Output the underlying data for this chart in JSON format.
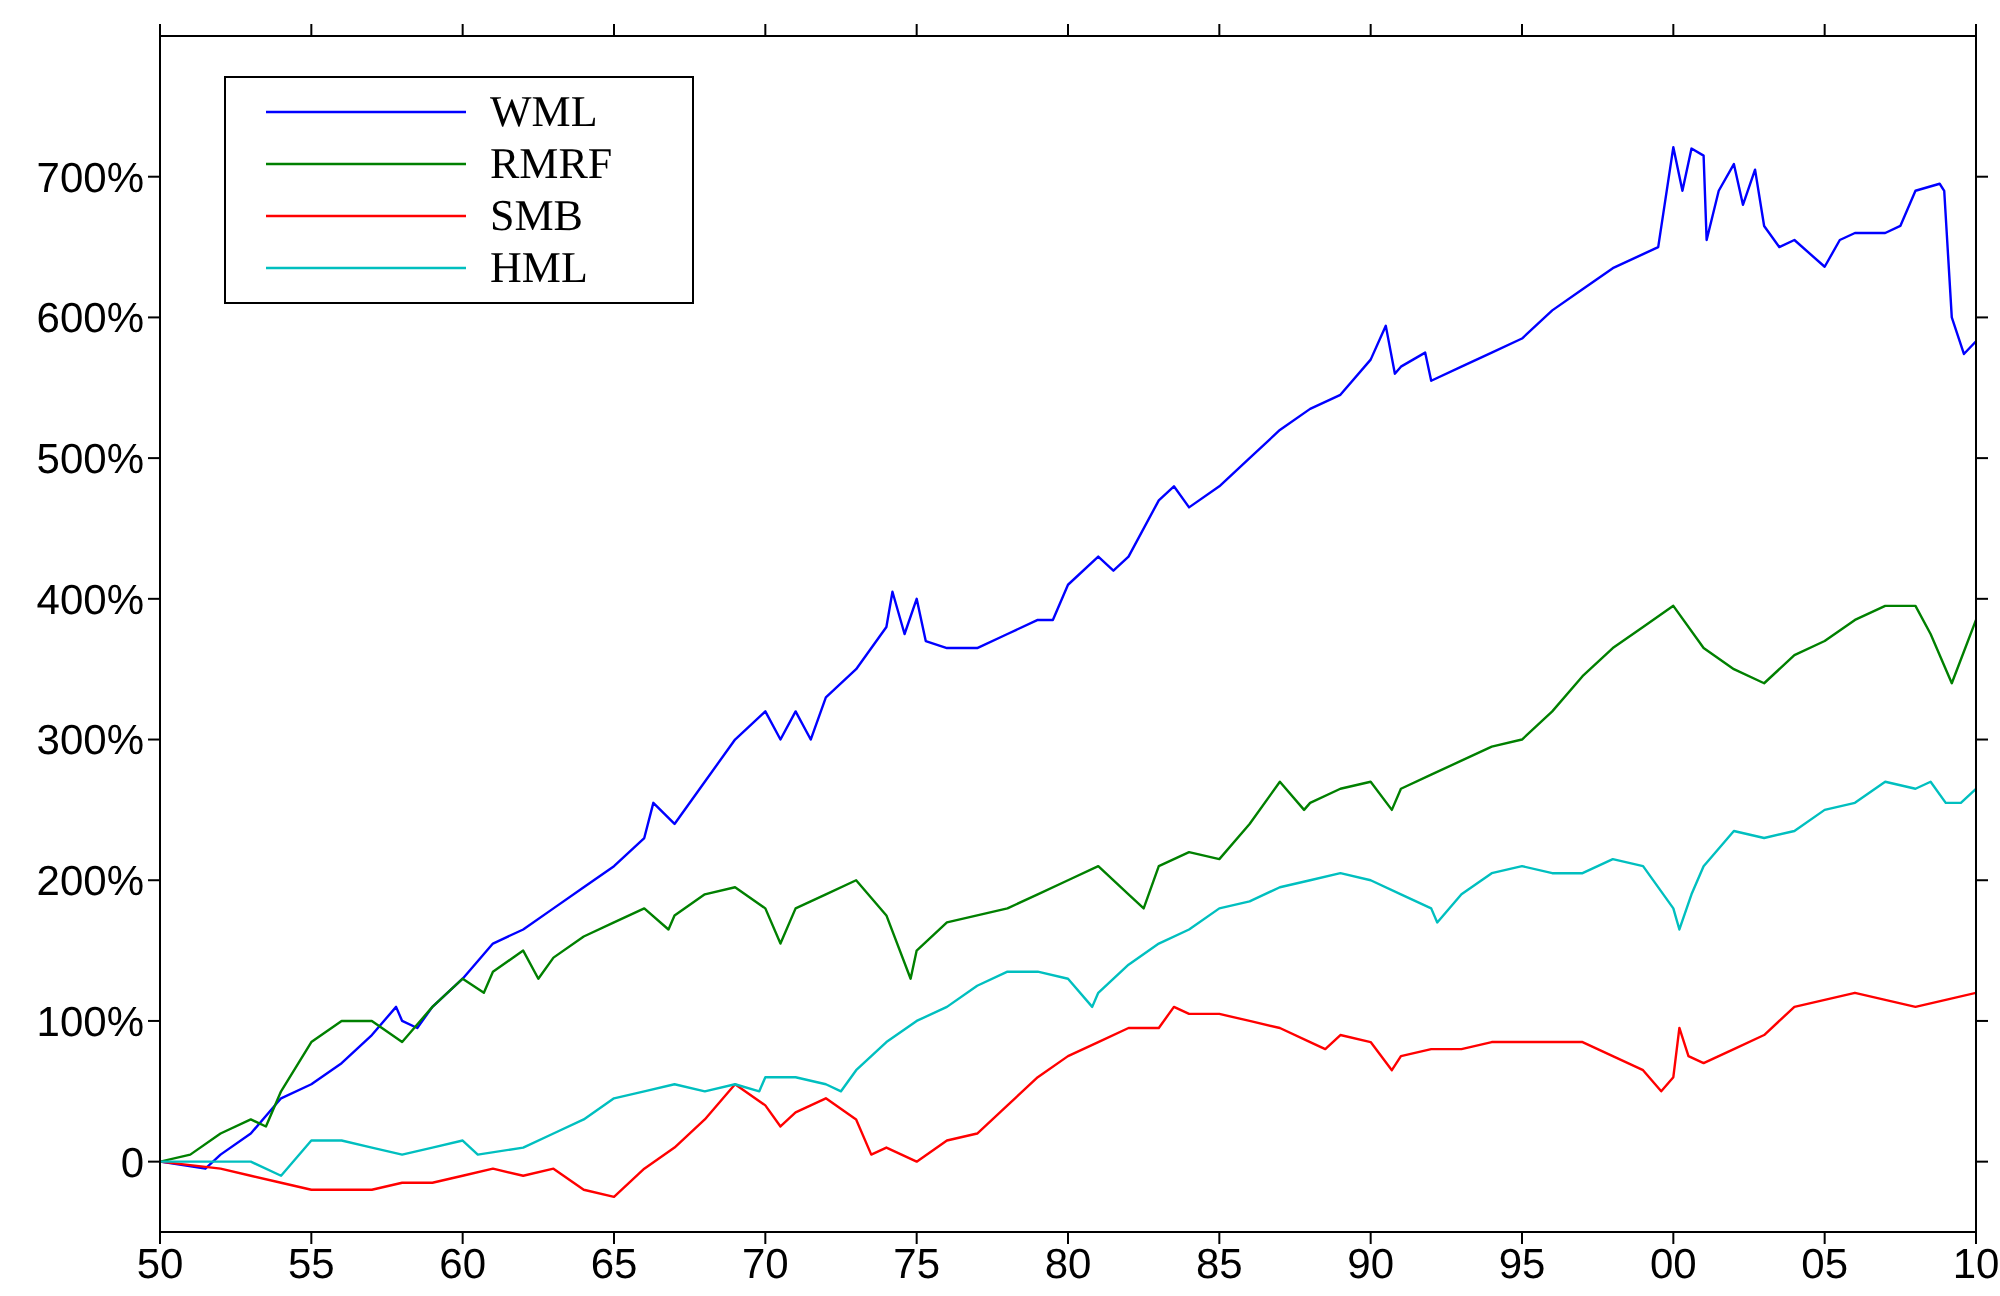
{
  "chart_data": {
    "type": "line",
    "xlim": [
      1950,
      2010
    ],
    "xticks": [
      {
        "value": 1950,
        "label": "50"
      },
      {
        "value": 1955,
        "label": "55"
      },
      {
        "value": 1960,
        "label": "60"
      },
      {
        "value": 1965,
        "label": "65"
      },
      {
        "value": 1970,
        "label": "70"
      },
      {
        "value": 1975,
        "label": "75"
      },
      {
        "value": 1980,
        "label": "80"
      },
      {
        "value": 1985,
        "label": "85"
      },
      {
        "value": 1990,
        "label": "90"
      },
      {
        "value": 1995,
        "label": "95"
      },
      {
        "value": 2000,
        "label": "00"
      },
      {
        "value": 2005,
        "label": "05"
      },
      {
        "value": 2010,
        "label": "10"
      }
    ],
    "ylim": [
      -50,
      800
    ],
    "yticks": [
      0,
      {
        "value": 100,
        "label": "100%"
      },
      {
        "value": 200,
        "label": "200%"
      },
      {
        "value": 300,
        "label": "300%"
      },
      {
        "value": 400,
        "label": "400%"
      },
      {
        "value": 500,
        "label": "500%"
      },
      {
        "value": 600,
        "label": "600%"
      },
      {
        "value": 700,
        "label": "700%"
      }
    ],
    "legend": "top left",
    "marker": "none",
    "line_style": "solid",
    "series": [
      {
        "name": "WML",
        "color": "#0000ff",
        "x": [
          1950,
          1951.5,
          1952,
          1953,
          1954,
          1955,
          1956,
          1957,
          1957.8,
          1958,
          1958.5,
          1959,
          1960,
          1961,
          1962,
          1963,
          1964,
          1965,
          1966,
          1966.3,
          1967,
          1968,
          1969,
          1970,
          1970.5,
          1971,
          1971.5,
          1972,
          1973,
          1974,
          1974.2,
          1974.6,
          1975,
          1975.3,
          1976,
          1977,
          1978,
          1979,
          1979.5,
          1980,
          1981,
          1981.5,
          1982,
          1983,
          1983.5,
          1984,
          1985,
          1986,
          1987,
          1988,
          1989,
          1990,
          1990.5,
          1990.8,
          1991,
          1991.8,
          1992,
          1993,
          1994,
          1995,
          1996,
          1997,
          1998,
          1999,
          1999.5,
          2000,
          2000.3,
          2000.6,
          2001,
          2001.1,
          2001.5,
          2002,
          2002.3,
          2002.7,
          2003,
          2003.5,
          2004,
          2005,
          2005.5,
          2006,
          2007,
          2007.5,
          2008,
          2008.8,
          2008.95,
          2009.2,
          2009.6,
          2010
        ],
        "values": [
          0,
          -5,
          5,
          20,
          45,
          55,
          70,
          90,
          110,
          100,
          95,
          110,
          130,
          155,
          165,
          180,
          195,
          210,
          230,
          255,
          240,
          270,
          300,
          320,
          300,
          320,
          300,
          330,
          350,
          380,
          405,
          375,
          400,
          370,
          365,
          365,
          375,
          385,
          385,
          410,
          430,
          420,
          430,
          470,
          480,
          465,
          480,
          500,
          520,
          535,
          545,
          570,
          594,
          560,
          565,
          575,
          555,
          565,
          575,
          585,
          605,
          620,
          635,
          645,
          650,
          721,
          690,
          720,
          715,
          655,
          690,
          709,
          680,
          705,
          665,
          650,
          655,
          636,
          655,
          660,
          660,
          665,
          690,
          695,
          690,
          600,
          574,
          583
        ]
      },
      {
        "name": "RMRF",
        "color": "#008000",
        "x": [
          1950,
          1951,
          1952,
          1953,
          1953.5,
          1954,
          1955,
          1956,
          1957,
          1958,
          1959,
          1960,
          1960.7,
          1961,
          1962,
          1962.5,
          1963,
          1964,
          1965,
          1966,
          1966.8,
          1967,
          1968,
          1969,
          1970,
          1970.5,
          1971,
          1972,
          1973,
          1974,
          1974.8,
          1975,
          1976,
          1977,
          1978,
          1979,
          1980,
          1981,
          1982,
          1982.5,
          1983,
          1984,
          1985,
          1986,
          1987,
          1987.8,
          1988,
          1989,
          1990,
          1990.7,
          1991,
          1992,
          1993,
          1994,
          1995,
          1996,
          1997,
          1998,
          1999,
          2000,
          2001,
          2002,
          2003,
          2004,
          2005,
          2006,
          2007,
          2008,
          2008.5,
          2009.2,
          2010
        ],
        "values": [
          0,
          5,
          20,
          30,
          25,
          50,
          85,
          100,
          100,
          85,
          110,
          130,
          120,
          135,
          150,
          130,
          145,
          160,
          170,
          180,
          165,
          175,
          190,
          195,
          180,
          155,
          180,
          190,
          200,
          175,
          130,
          150,
          170,
          175,
          180,
          190,
          200,
          210,
          190,
          180,
          210,
          220,
          215,
          240,
          270,
          250,
          255,
          265,
          270,
          250,
          265,
          275,
          285,
          295,
          300,
          320,
          345,
          365,
          380,
          395,
          365,
          350,
          340,
          360,
          370,
          385,
          395,
          395,
          375,
          340,
          385
        ]
      },
      {
        "name": "SMB",
        "color": "#ff0000",
        "x": [
          1950,
          1952,
          1953,
          1954,
          1955,
          1956,
          1957,
          1958,
          1959,
          1960,
          1961,
          1962,
          1963,
          1964,
          1965,
          1966,
          1967,
          1968,
          1969,
          1970,
          1970.5,
          1971,
          1972,
          1973,
          1973.5,
          1974,
          1975,
          1976,
          1977,
          1978,
          1979,
          1980,
          1981,
          1982,
          1983,
          1983.5,
          1984,
          1985,
          1986,
          1987,
          1988,
          1988.5,
          1989,
          1990,
          1990.7,
          1991,
          1992,
          1993,
          1994,
          1995,
          1996,
          1997,
          1998,
          1999,
          1999.6,
          2000,
          2000.2,
          2000.5,
          2001,
          2002,
          2003,
          2004,
          2005,
          2006,
          2007,
          2008,
          2009,
          2010
        ],
        "values": [
          0,
          -5,
          -10,
          -15,
          -20,
          -20,
          -20,
          -15,
          -15,
          -10,
          -5,
          -10,
          -5,
          -20,
          -25,
          -5,
          10,
          30,
          55,
          40,
          25,
          35,
          45,
          30,
          5,
          10,
          0,
          15,
          20,
          40,
          60,
          75,
          85,
          95,
          95,
          110,
          105,
          105,
          100,
          95,
          85,
          80,
          90,
          85,
          65,
          75,
          80,
          80,
          85,
          85,
          85,
          85,
          75,
          65,
          50,
          60,
          95,
          75,
          70,
          80,
          90,
          110,
          115,
          120,
          115,
          110,
          115,
          120
        ]
      },
      {
        "name": "HML",
        "color": "#00bfbf",
        "x": [
          1950,
          1953,
          1954,
          1955,
          1956,
          1957,
          1958,
          1959,
          1960,
          1960.5,
          1962,
          1963,
          1964,
          1965,
          1966,
          1967,
          1968,
          1969,
          1969.8,
          1970,
          1971,
          1972,
          1972.5,
          1973,
          1974,
          1975,
          1976,
          1977,
          1978,
          1979,
          1980,
          1980.8,
          1981,
          1982,
          1983,
          1984,
          1985,
          1986,
          1987,
          1988,
          1989,
          1990,
          1991,
          1992,
          1992.2,
          1993,
          1994,
          1995,
          1996,
          1997,
          1998,
          1999,
          2000,
          2000.2,
          2000.6,
          2001,
          2002,
          2003,
          2004,
          2005,
          2006,
          2007,
          2008,
          2008.5,
          2009,
          2009.5,
          2010
        ],
        "values": [
          0,
          0,
          -10,
          15,
          15,
          10,
          5,
          10,
          15,
          5,
          10,
          20,
          30,
          45,
          50,
          55,
          50,
          55,
          50,
          60,
          60,
          55,
          50,
          65,
          85,
          100,
          110,
          125,
          135,
          135,
          130,
          110,
          120,
          140,
          155,
          165,
          180,
          185,
          195,
          200,
          205,
          200,
          190,
          180,
          170,
          190,
          205,
          210,
          205,
          205,
          215,
          210,
          180,
          165,
          190,
          210,
          235,
          230,
          235,
          250,
          255,
          270,
          265,
          270,
          255,
          255,
          265
        ]
      }
    ]
  }
}
